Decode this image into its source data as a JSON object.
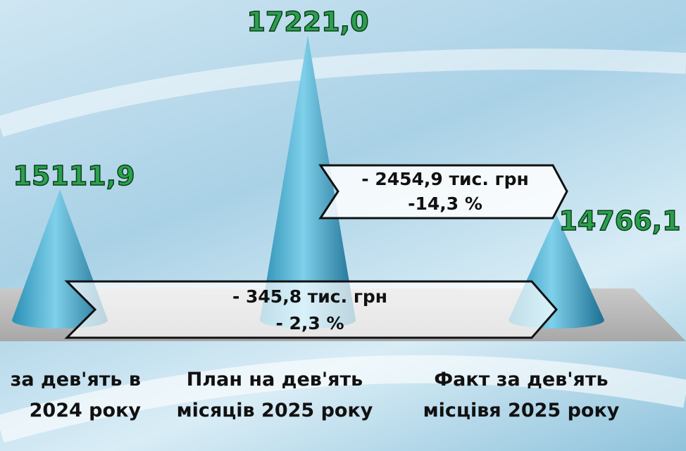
{
  "chart_data": {
    "type": "cone",
    "categories": [
      "за дев'ять в 2024 року",
      "План на дев'ять місяців 2025 року",
      "Факт за дев'ять місцівя 2025 року"
    ],
    "values": [
      15111.9,
      17221.0,
      14766.1
    ],
    "value_labels": [
      "15111,9",
      "17221,0",
      "14766,1"
    ],
    "annotations": [
      [
        "- 2454,9 тис. грн",
        "-14,3 %"
      ],
      [
        "- 345,8 тис. грн",
        "- 2,3 %"
      ]
    ]
  }
}
